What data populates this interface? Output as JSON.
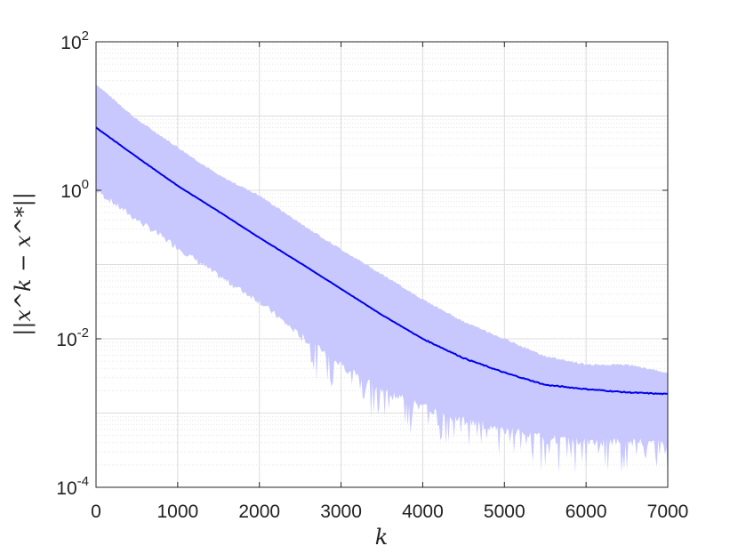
{
  "chart_data": {
    "type": "line",
    "xlabel": "k",
    "ylabel": "||x^k − x^*||",
    "xlim": [
      0,
      7000
    ],
    "ylim": [
      0.0001,
      100
    ],
    "yscale": "log",
    "grid": true,
    "legend": "none",
    "x_ticks": [
      "0",
      "1000",
      "2000",
      "3000",
      "4000",
      "5000",
      "6000",
      "7000"
    ],
    "y_ticks": [
      {
        "base": "10",
        "exp": "-4",
        "value": 0.0001
      },
      {
        "base": "10",
        "exp": "-2",
        "value": 0.01
      },
      {
        "base": "10",
        "exp": "0",
        "value": 1
      },
      {
        "base": "10",
        "exp": "2",
        "value": 100
      }
    ],
    "series": [
      {
        "kind": "mean-line",
        "color": "#0000ee",
        "x": [
          0,
          500,
          1000,
          1500,
          2000,
          2500,
          3000,
          3500,
          4000,
          4500,
          5000,
          5500,
          6000,
          6500,
          7000
        ],
        "y": [
          7.0,
          2.8,
          1.15,
          0.52,
          0.23,
          0.105,
          0.047,
          0.021,
          0.01,
          0.0055,
          0.0035,
          0.0024,
          0.0021,
          0.0019,
          0.0018
        ]
      },
      {
        "kind": "band",
        "color": "#c8c8ff",
        "x": [
          0,
          500,
          1000,
          1500,
          2000,
          2500,
          3000,
          3500,
          4000,
          4500,
          5000,
          5500,
          6000,
          6500,
          7000
        ],
        "upper": [
          27,
          9.0,
          3.8,
          1.6,
          0.85,
          0.36,
          0.16,
          0.074,
          0.034,
          0.017,
          0.01,
          0.0058,
          0.0045,
          0.0045,
          0.0035
        ],
        "lower": [
          1.0,
          0.4,
          0.17,
          0.07,
          0.032,
          0.011,
          0.0045,
          0.002,
          0.0012,
          0.0008,
          0.0006,
          0.00045,
          0.0004,
          0.0004,
          0.0004
        ]
      }
    ]
  }
}
